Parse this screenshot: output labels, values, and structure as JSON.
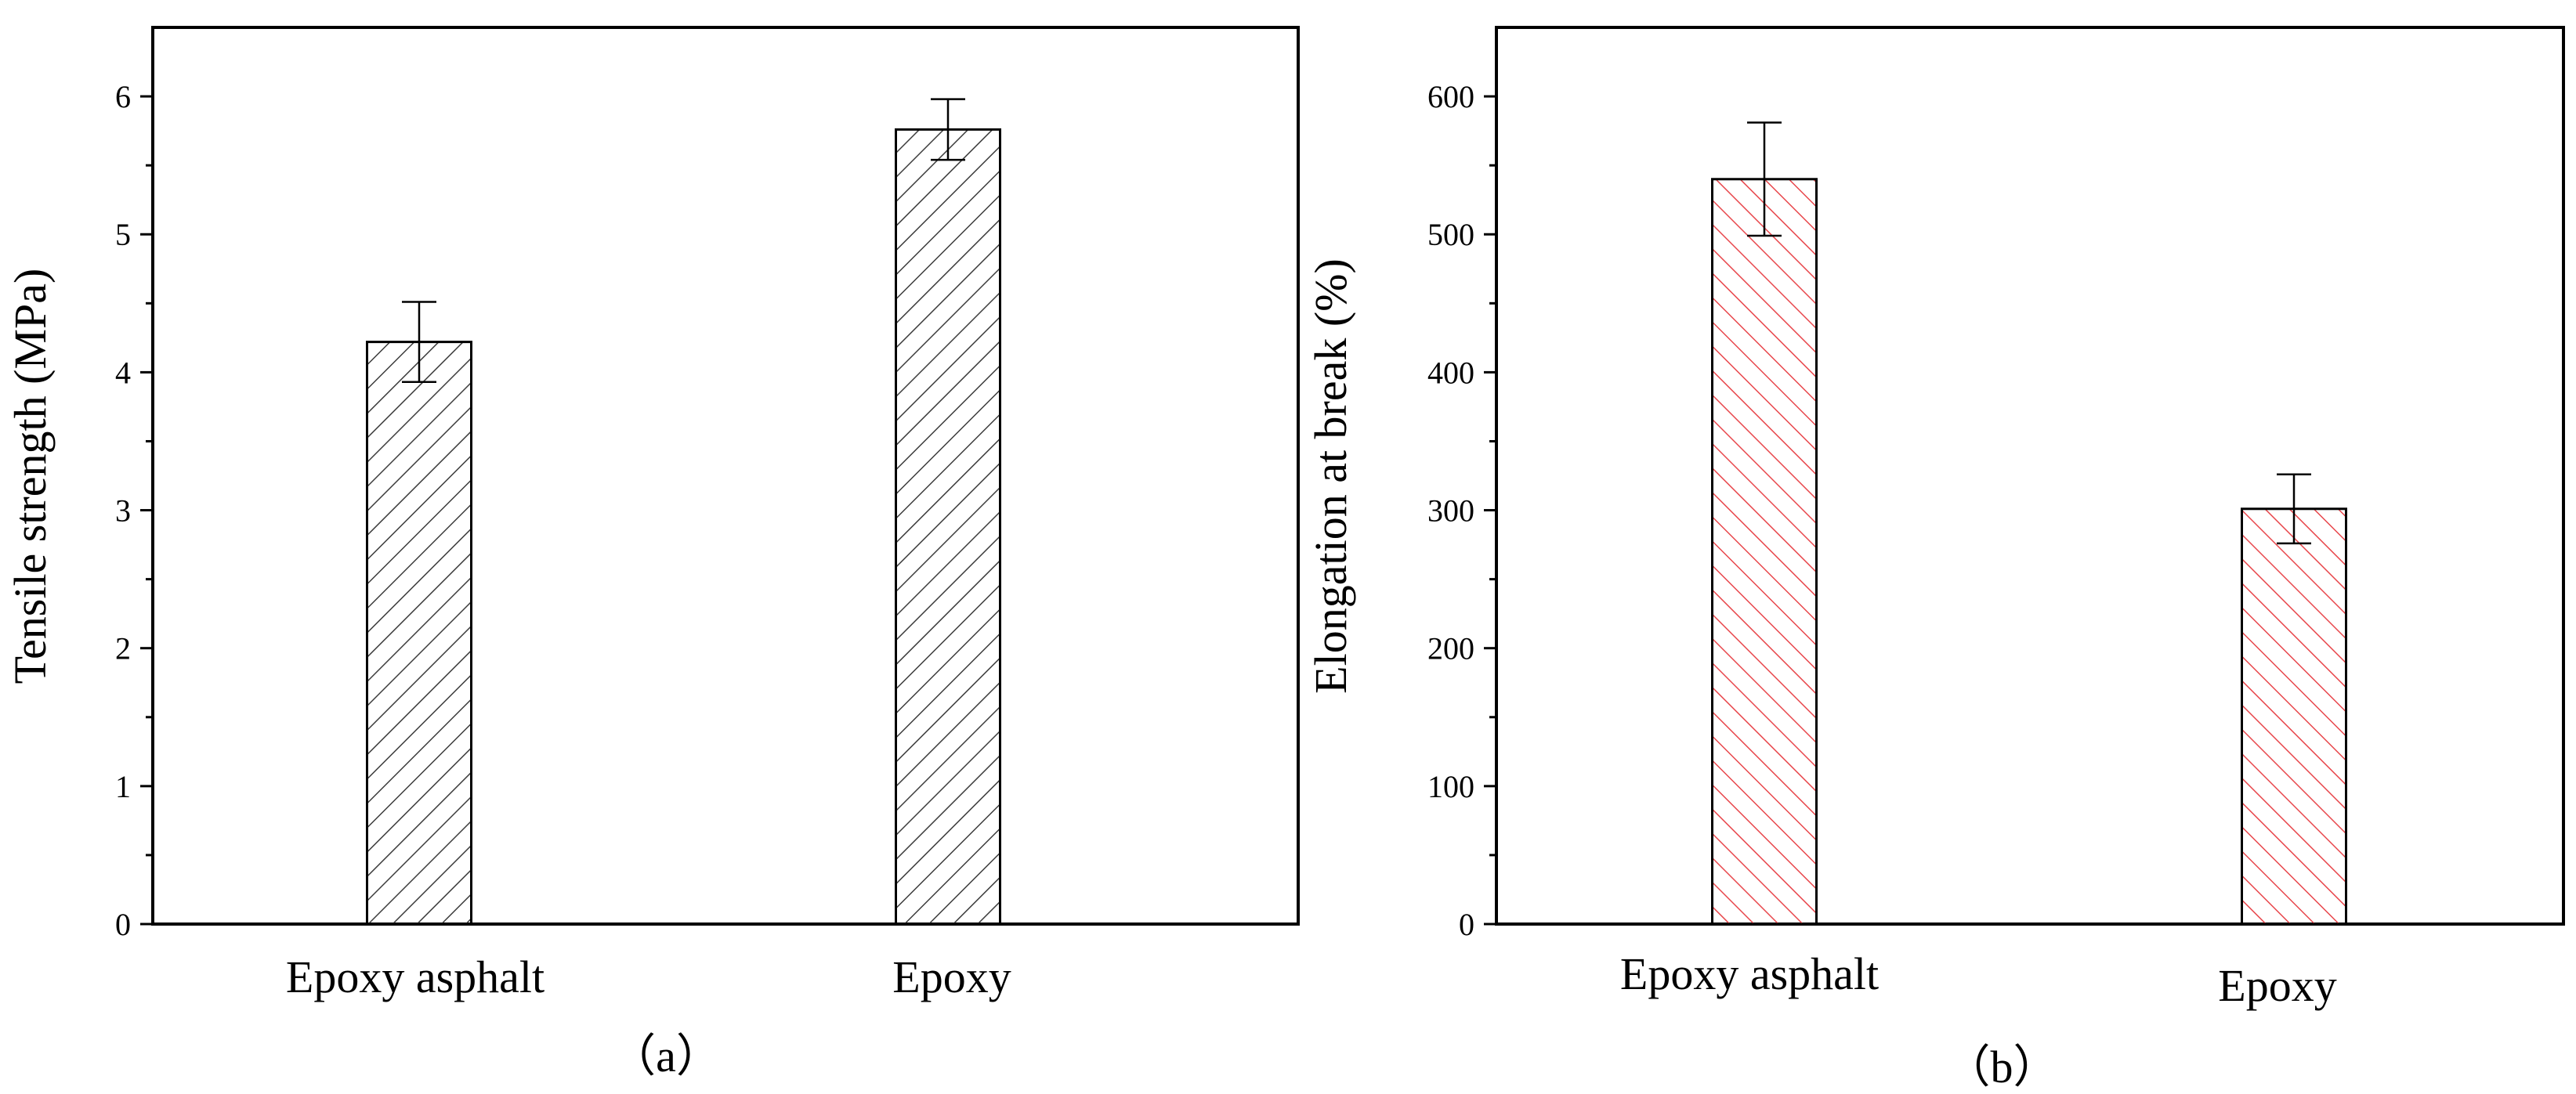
{
  "chart_data": [
    {
      "type": "bar",
      "panel_label": "（a）",
      "categories": [
        "Epoxy asphalt",
        "Epoxy"
      ],
      "values": [
        4.22,
        5.76
      ],
      "errors": [
        0.29,
        0.22
      ],
      "xlabel": "",
      "ylabel": "Tensile strength (MPa)",
      "ylim": [
        0,
        6.5
      ],
      "yticks": [
        "0",
        "1",
        "2",
        "3",
        "4",
        "5",
        "6"
      ],
      "hatch": "forward-diagonal",
      "color": "#3c3c3c",
      "grid": false,
      "legend": "none"
    },
    {
      "type": "bar",
      "panel_label": "（b）",
      "categories": [
        "Epoxy asphalt",
        "Epoxy"
      ],
      "values": [
        540,
        301
      ],
      "errors": [
        41,
        25
      ],
      "xlabel": "",
      "ylabel": "Elongation at break (%)",
      "ylim": [
        0,
        650
      ],
      "yticks": [
        "0",
        "100",
        "200",
        "300",
        "400",
        "500",
        "600"
      ],
      "hatch": "backward-diagonal",
      "color": "#e8474c",
      "grid": false,
      "legend": "none"
    }
  ]
}
